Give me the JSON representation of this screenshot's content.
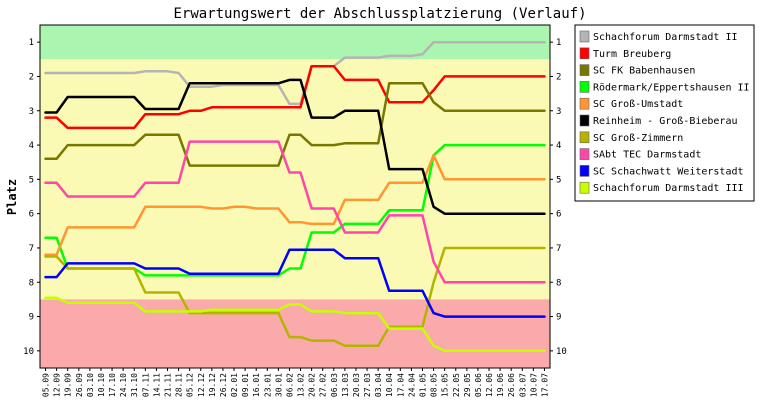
{
  "chart_data": {
    "type": "line",
    "title": "Erwartungswert der Abschlussplatzierung (Verlauf)",
    "ylabel": "Platz",
    "xlabel": "",
    "ylim": [
      0.5,
      10.5
    ],
    "y_ticks": [
      "1",
      "2",
      "3",
      "4",
      "5",
      "6",
      "7",
      "8",
      "9",
      "10"
    ],
    "bands": [
      {
        "from": 0.5,
        "to": 1.5,
        "color": "#aaf5b0"
      },
      {
        "from": 1.5,
        "to": 8.5,
        "color": "#fafab4"
      },
      {
        "from": 8.5,
        "to": 10.5,
        "color": "#faaaaa"
      }
    ],
    "x": [
      "05.09",
      "12.09",
      "19.09",
      "26.09",
      "03.10",
      "10.10",
      "17.10",
      "24.10",
      "31.10",
      "07.11",
      "14.11",
      "21.11",
      "28.11",
      "05.12",
      "12.12",
      "19.12",
      "26.12",
      "02.01",
      "09.01",
      "16.01",
      "23.01",
      "30.01",
      "06.02",
      "13.02",
      "20.02",
      "27.02",
      "06.03",
      "13.03",
      "20.03",
      "27.03",
      "03.04",
      "10.04",
      "17.04",
      "24.04",
      "01.05",
      "08.05",
      "15.05",
      "22.05",
      "29.05",
      "05.06",
      "12.06",
      "19.06",
      "26.06",
      "03.07",
      "10.07",
      "17.07"
    ],
    "legend": "right",
    "grid": false,
    "series": [
      {
        "name": "Schachforum Darmstadt II",
        "color": "#b4b4b4",
        "values": [
          1.9,
          1.9,
          1.9,
          1.9,
          1.9,
          1.9,
          1.9,
          1.9,
          1.9,
          1.85,
          1.85,
          1.85,
          1.9,
          2.3,
          2.3,
          2.3,
          2.25,
          2.25,
          2.25,
          2.25,
          2.25,
          2.25,
          2.8,
          2.8,
          1.7,
          1.7,
          1.7,
          1.45,
          1.45,
          1.45,
          1.45,
          1.4,
          1.4,
          1.4,
          1.35,
          1.0,
          1.0,
          1.0,
          1.0,
          1.0,
          1.0,
          1.0,
          1.0,
          1.0,
          1.0,
          1.0
        ]
      },
      {
        "name": "Turm Breuberg",
        "color": "#ff0000",
        "values": [
          3.2,
          3.2,
          3.5,
          3.5,
          3.5,
          3.5,
          3.5,
          3.5,
          3.5,
          3.1,
          3.1,
          3.1,
          3.1,
          3.0,
          3.0,
          2.9,
          2.9,
          2.9,
          2.9,
          2.9,
          2.9,
          2.9,
          2.9,
          2.9,
          1.7,
          1.7,
          1.7,
          2.1,
          2.1,
          2.1,
          2.1,
          2.75,
          2.75,
          2.75,
          2.75,
          2.4,
          2.0,
          2.0,
          2.0,
          2.0,
          2.0,
          2.0,
          2.0,
          2.0,
          2.0,
          2.0
        ]
      },
      {
        "name": "SC FK Babenhausen",
        "color": "#787800",
        "values": [
          4.4,
          4.4,
          4.0,
          4.0,
          4.0,
          4.0,
          4.0,
          4.0,
          4.0,
          3.7,
          3.7,
          3.7,
          3.7,
          4.6,
          4.6,
          4.6,
          4.6,
          4.6,
          4.6,
          4.6,
          4.6,
          4.6,
          3.7,
          3.7,
          4.0,
          4.0,
          4.0,
          3.95,
          3.95,
          3.95,
          3.95,
          2.2,
          2.2,
          2.2,
          2.2,
          2.75,
          3.0,
          3.0,
          3.0,
          3.0,
          3.0,
          3.0,
          3.0,
          3.0,
          3.0,
          3.0
        ]
      },
      {
        "name": "Rödermark/Eppertshausen II",
        "color": "#00ff00",
        "values": [
          6.7,
          6.7,
          7.6,
          7.6,
          7.6,
          7.6,
          7.6,
          7.6,
          7.6,
          7.8,
          7.8,
          7.8,
          7.8,
          7.8,
          7.8,
          7.8,
          7.8,
          7.8,
          7.8,
          7.8,
          7.8,
          7.8,
          7.6,
          7.6,
          6.55,
          6.55,
          6.55,
          6.3,
          6.3,
          6.3,
          6.3,
          5.9,
          5.9,
          5.9,
          5.9,
          4.3,
          4.0,
          4.0,
          4.0,
          4.0,
          4.0,
          4.0,
          4.0,
          4.0,
          4.0,
          4.0
        ]
      },
      {
        "name": "SC Groß-Umstadt",
        "color": "#ff9632",
        "values": [
          7.2,
          7.2,
          6.4,
          6.4,
          6.4,
          6.4,
          6.4,
          6.4,
          6.4,
          5.8,
          5.8,
          5.8,
          5.8,
          5.8,
          5.8,
          5.85,
          5.85,
          5.8,
          5.8,
          5.85,
          5.85,
          5.85,
          6.25,
          6.25,
          6.3,
          6.3,
          6.3,
          5.6,
          5.6,
          5.6,
          5.6,
          5.1,
          5.1,
          5.1,
          5.1,
          4.3,
          5.0,
          5.0,
          5.0,
          5.0,
          5.0,
          5.0,
          5.0,
          5.0,
          5.0,
          5.0
        ]
      },
      {
        "name": "Reinheim - Groß-Bieberau",
        "color": "#000000",
        "values": [
          3.05,
          3.05,
          2.6,
          2.6,
          2.6,
          2.6,
          2.6,
          2.6,
          2.6,
          2.95,
          2.95,
          2.95,
          2.95,
          2.2,
          2.2,
          2.2,
          2.2,
          2.2,
          2.2,
          2.2,
          2.2,
          2.2,
          2.1,
          2.1,
          3.2,
          3.2,
          3.2,
          3.0,
          3.0,
          3.0,
          3.0,
          4.7,
          4.7,
          4.7,
          4.7,
          5.8,
          6.0,
          6.0,
          6.0,
          6.0,
          6.0,
          6.0,
          6.0,
          6.0,
          6.0,
          6.0
        ]
      },
      {
        "name": "SC Groß-Zimmern",
        "color": "#b4b400",
        "values": [
          7.25,
          7.25,
          7.6,
          7.6,
          7.6,
          7.6,
          7.6,
          7.6,
          7.6,
          8.3,
          8.3,
          8.3,
          8.3,
          8.9,
          8.9,
          8.9,
          8.9,
          8.9,
          8.9,
          8.9,
          8.9,
          8.9,
          9.6,
          9.6,
          9.7,
          9.7,
          9.7,
          9.85,
          9.85,
          9.85,
          9.85,
          9.3,
          9.3,
          9.3,
          9.3,
          8.0,
          7.0,
          7.0,
          7.0,
          7.0,
          7.0,
          7.0,
          7.0,
          7.0,
          7.0,
          7.0
        ]
      },
      {
        "name": "SAbt TEC Darmstadt",
        "color": "#ff46aa",
        "values": [
          5.1,
          5.1,
          5.5,
          5.5,
          5.5,
          5.5,
          5.5,
          5.5,
          5.5,
          5.1,
          5.1,
          5.1,
          5.1,
          3.9,
          3.9,
          3.9,
          3.9,
          3.9,
          3.9,
          3.9,
          3.9,
          3.9,
          4.8,
          4.8,
          5.85,
          5.85,
          5.85,
          6.55,
          6.55,
          6.55,
          6.55,
          6.05,
          6.05,
          6.05,
          6.05,
          7.4,
          8.0,
          8.0,
          8.0,
          8.0,
          8.0,
          8.0,
          8.0,
          8.0,
          8.0,
          8.0
        ]
      },
      {
        "name": "SC Schachwatt Weiterstadt",
        "color": "#0000ff",
        "values": [
          7.85,
          7.85,
          7.45,
          7.45,
          7.45,
          7.45,
          7.45,
          7.45,
          7.45,
          7.6,
          7.6,
          7.6,
          7.6,
          7.75,
          7.75,
          7.75,
          7.75,
          7.75,
          7.75,
          7.75,
          7.75,
          7.75,
          7.05,
          7.05,
          7.05,
          7.05,
          7.05,
          7.3,
          7.3,
          7.3,
          7.3,
          8.25,
          8.25,
          8.25,
          8.25,
          8.9,
          9.0,
          9.0,
          9.0,
          9.0,
          9.0,
          9.0,
          9.0,
          9.0,
          9.0,
          9.0
        ]
      },
      {
        "name": "Schachforum Darmstadt III",
        "color": "#c8ff00",
        "values": [
          8.45,
          8.45,
          8.6,
          8.6,
          8.6,
          8.6,
          8.6,
          8.6,
          8.6,
          8.85,
          8.85,
          8.85,
          8.85,
          8.85,
          8.85,
          8.8,
          8.8,
          8.8,
          8.8,
          8.8,
          8.8,
          8.8,
          8.65,
          8.65,
          8.85,
          8.85,
          8.85,
          8.9,
          8.9,
          8.9,
          8.9,
          9.35,
          9.35,
          9.35,
          9.35,
          9.85,
          10.0,
          10.0,
          10.0,
          10.0,
          10.0,
          10.0,
          10.0,
          10.0,
          10.0,
          10.0
        ]
      }
    ]
  }
}
